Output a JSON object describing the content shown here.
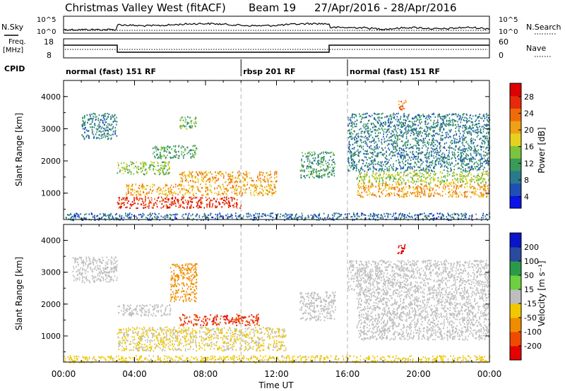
{
  "title": {
    "site": "Christmas Valley West (fitACF)",
    "beam": "Beam 19",
    "dates": "27/Apr/2016 - 28/Apr/2016"
  },
  "header_panels": {
    "nsky": {
      "label": "N.Sky",
      "left_ticks": [
        "10^5",
        "10^0"
      ],
      "right_ticks": [
        "10^5",
        "10^0"
      ],
      "right_label": "N.Search"
    },
    "freq": {
      "label_line1": "Freq.",
      "label_line2": "[MHz]",
      "left_ticks": [
        "18",
        "8"
      ],
      "right_ticks": [
        "60",
        "0"
      ],
      "right_label": "Nave"
    },
    "cpid": {
      "label": "CPID",
      "segments": [
        {
          "text": "normal (fast) 151 RF",
          "start_h": 0
        },
        {
          "text": "rbsp 201 RF",
          "start_h": 10
        },
        {
          "text": "normal (fast) 151 RF",
          "start_h": 16
        }
      ]
    }
  },
  "x_axis": {
    "label": "Time UT",
    "range_h": [
      0,
      24
    ],
    "ticks": [
      "00:00",
      "04:00",
      "08:00",
      "12:00",
      "16:00",
      "20:00",
      "00:00"
    ],
    "mode_change_h": [
      10,
      16
    ]
  },
  "panels": {
    "power": {
      "ylabel": "Slant Range [km]",
      "yticks": [
        "1000",
        "2000",
        "3000",
        "4000"
      ],
      "colorbar_label": "Power [dB]",
      "colorbar_ticks": [
        "28",
        "24",
        "20",
        "16",
        "12",
        "8",
        "4"
      ]
    },
    "velocity": {
      "ylabel": "Slant Range [km]",
      "yticks": [
        "1000",
        "2000",
        "3000",
        "4000"
      ],
      "colorbar_label": "Velocity [m s⁻¹]",
      "colorbar_ticks": [
        "200",
        "100",
        "50",
        "15",
        "-15",
        "-50",
        "-100",
        "-200"
      ]
    }
  },
  "colors": {
    "power_scale": [
      "#0a14e6",
      "#1e50b4",
      "#2a7a8c",
      "#3a9a5a",
      "#7cc43c",
      "#e6d21e",
      "#f0a014",
      "#f06a0a",
      "#e62a0a",
      "#dc0000"
    ],
    "velocity_scale": [
      "#e60000",
      "#f04a00",
      "#f08c00",
      "#f0c800",
      "#bebebe",
      "#6cd040",
      "#2a9a4a",
      "#2a4aa0",
      "#0a14c8"
    ]
  },
  "chart_data": [
    {
      "type": "heatmap",
      "panel": "power",
      "units": "dB",
      "x_unit": "hours UT",
      "y_unit": "km",
      "xlim": [
        0,
        24
      ],
      "ylim": [
        180,
        4500
      ],
      "zlim": [
        0,
        30
      ],
      "scatter_regions": [
        {
          "t": [
            3.0,
            10.0
          ],
          "r": [
            550,
            900
          ],
          "p": 26
        },
        {
          "t": [
            3.5,
            12.0
          ],
          "r": [
            950,
            1300
          ],
          "p": 19
        },
        {
          "t": [
            3.0,
            6.0
          ],
          "r": [
            1600,
            2000
          ],
          "p": 13
        },
        {
          "t": [
            5.0,
            7.5
          ],
          "r": [
            2100,
            2500
          ],
          "p": 11
        },
        {
          "t": [
            6.5,
            12.0
          ],
          "r": [
            1350,
            1700
          ],
          "p": 20
        },
        {
          "t": [
            1.0,
            3.0
          ],
          "r": [
            2700,
            3500
          ],
          "p": 8
        },
        {
          "t": [
            6.5,
            7.5
          ],
          "r": [
            3000,
            3400
          ],
          "p": 12
        },
        {
          "t": [
            13.3,
            15.3
          ],
          "r": [
            1500,
            2300
          ],
          "p": 10
        },
        {
          "t": [
            16.5,
            24.0
          ],
          "r": [
            900,
            1300
          ],
          "p": 20
        },
        {
          "t": [
            16.5,
            24.0
          ],
          "r": [
            1300,
            1700
          ],
          "p": 15
        },
        {
          "t": [
            16.0,
            24.0
          ],
          "r": [
            1700,
            3500
          ],
          "p": 8
        },
        {
          "t": [
            18.8,
            19.3
          ],
          "r": [
            3600,
            3900
          ],
          "p": 22
        },
        {
          "t": [
            0.0,
            24.0
          ],
          "r": [
            180,
            400
          ],
          "p": 6
        }
      ]
    },
    {
      "type": "heatmap",
      "panel": "velocity",
      "units": "m s-1",
      "x_unit": "hours UT",
      "y_unit": "km",
      "xlim": [
        0,
        24
      ],
      "ylim": [
        180,
        4500
      ],
      "zlim": [
        -250,
        250
      ],
      "scatter_regions": [
        {
          "t": [
            3.0,
            12.5
          ],
          "r": [
            550,
            1300
          ],
          "v": -30
        },
        {
          "t": [
            6.5,
            11.0
          ],
          "r": [
            1350,
            1700
          ],
          "v": -190
        },
        {
          "t": [
            3.0,
            6.0
          ],
          "r": [
            1650,
            2000
          ],
          "v": 5
        },
        {
          "t": [
            6.0,
            7.5
          ],
          "r": [
            2100,
            3300
          ],
          "v": -100
        },
        {
          "t": [
            0.5,
            3.0
          ],
          "r": [
            2700,
            3500
          ],
          "v": 5
        },
        {
          "t": [
            13.3,
            15.3
          ],
          "r": [
            1500,
            2400
          ],
          "v": 0
        },
        {
          "t": [
            16.5,
            24.0
          ],
          "r": [
            900,
            2400
          ],
          "v": 0
        },
        {
          "t": [
            16.0,
            24.0
          ],
          "r": [
            2400,
            3400
          ],
          "v": 0
        },
        {
          "t": [
            18.8,
            19.3
          ],
          "r": [
            3600,
            3900
          ],
          "v": -220
        },
        {
          "t": [
            0.0,
            24.0
          ],
          "r": [
            180,
            400
          ],
          "v": -40
        }
      ]
    }
  ]
}
